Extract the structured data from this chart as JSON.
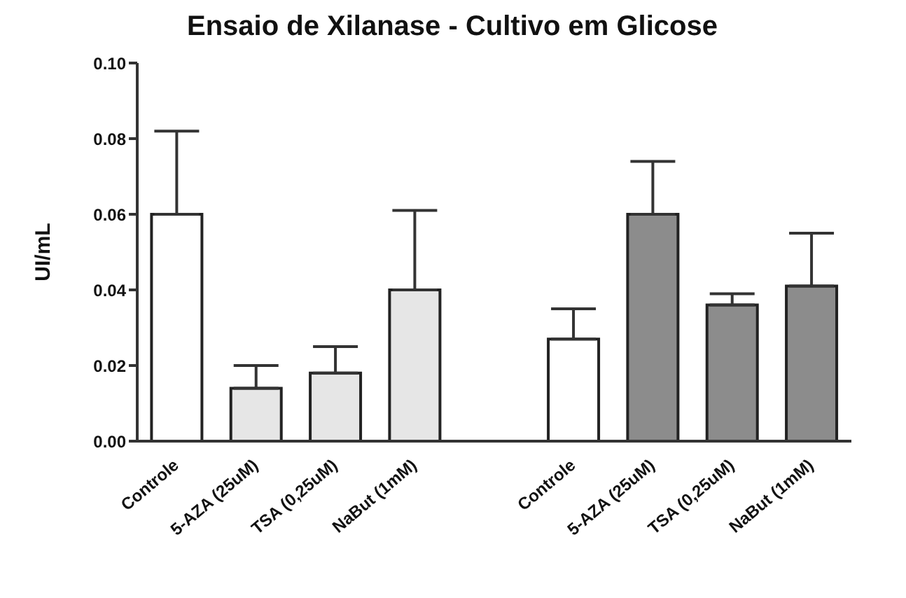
{
  "chart_data": {
    "type": "bar",
    "title": "Ensaio de Xilanase - Cultivo em Glicose",
    "ylabel": "UI/mL",
    "categories": [
      "Controle",
      "5-AZA (25uM)",
      "TSA (0,25uM)",
      "NaBut (1mM)",
      null,
      "Controle",
      "5-AZA (25uM)",
      "TSA (0,25uM)",
      "NaBut (1mM)"
    ],
    "values": [
      0.06,
      0.014,
      0.018,
      0.04,
      null,
      0.027,
      0.06,
      0.036,
      0.041
    ],
    "errors": [
      [
        0.06,
        0.082
      ],
      [
        0.014,
        0.02
      ],
      [
        0.018,
        0.025
      ],
      [
        0.04,
        0.061
      ],
      null,
      [
        0.027,
        0.035
      ],
      [
        0.06,
        0.074
      ],
      [
        0.036,
        0.039
      ],
      [
        0.041,
        0.055
      ]
    ],
    "colors": [
      "#ffffff",
      "#e6e6e6",
      "#e6e6e6",
      "#e6e6e6",
      "#ffffff",
      "#ffffff",
      "#8c8c8c",
      "#8c8c8c",
      "#8c8c8c"
    ],
    "ylim": [
      0,
      0.1
    ],
    "yticks": [
      {
        "value": 0,
        "label": "0.00"
      },
      {
        "value": 0.02,
        "label": "0.02"
      },
      {
        "value": 0.04,
        "label": "0.04"
      },
      {
        "value": 0.06,
        "label": "0.06"
      },
      {
        "value": 0.08,
        "label": "0.08"
      },
      {
        "value": 0.1,
        "label": "0.10"
      }
    ],
    "grid": false,
    "legend": false
  }
}
